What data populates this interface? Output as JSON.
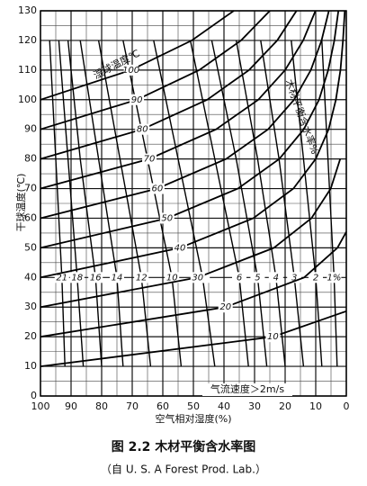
{
  "chart_data": {
    "type": "line",
    "title": "图 2.2    木材平衡含水率图",
    "subtitle": "（自 U. S. A Forest Prod. Lab.）",
    "xlabel": "空气相对湿度(%)",
    "ylabel": "干球温度(℃)",
    "wet_bulb_title": "湿球温度℃",
    "emc_title": "木材平衡含水率%",
    "annotation": "气流速度＞2m/s",
    "xlim": [
      100,
      0
    ],
    "ylim": [
      0,
      130
    ],
    "xticks": [
      100,
      90,
      80,
      70,
      60,
      50,
      40,
      30,
      20,
      10,
      0
    ],
    "yticks": [
      0,
      10,
      20,
      30,
      40,
      50,
      60,
      70,
      80,
      90,
      100,
      110,
      120,
      130
    ],
    "x_minor_ticks": [
      95,
      85,
      75,
      65,
      55,
      45,
      35,
      25,
      15,
      5
    ],
    "y_minor_ticks": [
      5,
      15,
      25,
      35,
      45,
      55,
      65,
      75,
      85,
      95,
      105,
      115,
      125
    ],
    "wet_bulb_lines": [
      {
        "name": "10",
        "x": [
          100,
          24,
          0
        ],
        "y": [
          10,
          20,
          28.6
        ]
      },
      {
        "name": "20",
        "x": [
          100,
          39.5,
          13.8,
          2.9,
          0
        ],
        "y": [
          20,
          30,
          40,
          50,
          55.4
        ]
      },
      {
        "name": "30",
        "x": [
          100,
          48.6,
          23.7,
          11.4,
          5.1,
          2.0
        ],
        "y": [
          30,
          40,
          50,
          60,
          70,
          80
        ]
      },
      {
        "name": "40",
        "x": [
          100,
          54.4,
          30.4,
          17.3,
          10.0,
          5.8,
          3.4,
          1.9,
          1.1,
          0.5
        ],
        "y": [
          40,
          50,
          60,
          70,
          80,
          90,
          100,
          110,
          120,
          130
        ]
      },
      {
        "name": "50",
        "x": [
          100,
          58.6,
          35.4,
          21.9,
          13.9,
          8.9,
          5.9,
          3.9,
          2.6
        ],
        "y": [
          50,
          60,
          70,
          80,
          90,
          100,
          110,
          120,
          130
        ]
      },
      {
        "name": "60",
        "x": [
          100,
          61.8,
          39.3,
          25.6,
          17.1,
          11.6,
          8.1,
          5.7
        ],
        "y": [
          60,
          70,
          80,
          90,
          100,
          110,
          120,
          130
        ]
      },
      {
        "name": "70",
        "x": [
          100,
          64.4,
          42.6,
          28.8,
          20.0,
          14.1,
          10.1
        ],
        "y": [
          70,
          80,
          90,
          100,
          110,
          120,
          130
        ]
      },
      {
        "name": "80",
        "x": [
          100,
          66.7,
          45.5,
          31.8,
          22.6,
          16.3
        ],
        "y": [
          80,
          90,
          100,
          110,
          120,
          130
        ]
      },
      {
        "name": "90",
        "x": [
          100,
          68.5,
          48.1,
          34.4,
          25.0
        ],
        "y": [
          90,
          100,
          110,
          120,
          130
        ]
      },
      {
        "name": "100",
        "x": [
          100,
          70.4,
          50.5,
          36.8
        ],
        "y": [
          100,
          110,
          120,
          130
        ]
      }
    ],
    "emc_lines": [
      {
        "name": "1%",
        "x": [
          3,
          4,
          6,
          8
        ],
        "y": [
          10,
          40,
          80,
          120
        ]
      },
      {
        "name": "2",
        "x": [
          8,
          10,
          14,
          18
        ],
        "y": [
          10,
          40,
          80,
          120
        ]
      },
      {
        "name": "3",
        "x": [
          14,
          17,
          22,
          28
        ],
        "y": [
          10,
          40,
          80,
          120
        ]
      },
      {
        "name": "4",
        "x": [
          20,
          23,
          29,
          36
        ],
        "y": [
          10,
          40,
          80,
          120
        ]
      },
      {
        "name": "5",
        "x": [
          26,
          29,
          36,
          44
        ],
        "y": [
          10,
          40,
          80,
          120
        ]
      },
      {
        "name": "6",
        "x": [
          32,
          35,
          43,
          51
        ],
        "y": [
          10,
          40,
          80,
          120
        ]
      },
      {
        "name": "8",
        "x": [
          43,
          47,
          55,
          63
        ],
        "y": [
          10,
          40,
          80,
          120
        ]
      },
      {
        "name": "10",
        "x": [
          54,
          57,
          65,
          73
        ],
        "y": [
          10,
          40,
          80,
          120
        ]
      },
      {
        "name": "12",
        "x": [
          64,
          67,
          74,
          81
        ],
        "y": [
          10,
          40,
          80,
          120
        ]
      },
      {
        "name": "14",
        "x": [
          73,
          75,
          81,
          87
        ],
        "y": [
          10,
          40,
          80,
          120
        ]
      },
      {
        "name": "16",
        "x": [
          80,
          82,
          87,
          91
        ],
        "y": [
          10,
          40,
          80,
          120
        ]
      },
      {
        "name": "18",
        "x": [
          86,
          88,
          91,
          94
        ],
        "y": [
          10,
          40,
          80,
          120
        ]
      },
      {
        "name": "21",
        "x": [
          92,
          93,
          95,
          97
        ],
        "y": [
          10,
          40,
          80,
          120
        ]
      }
    ]
  }
}
